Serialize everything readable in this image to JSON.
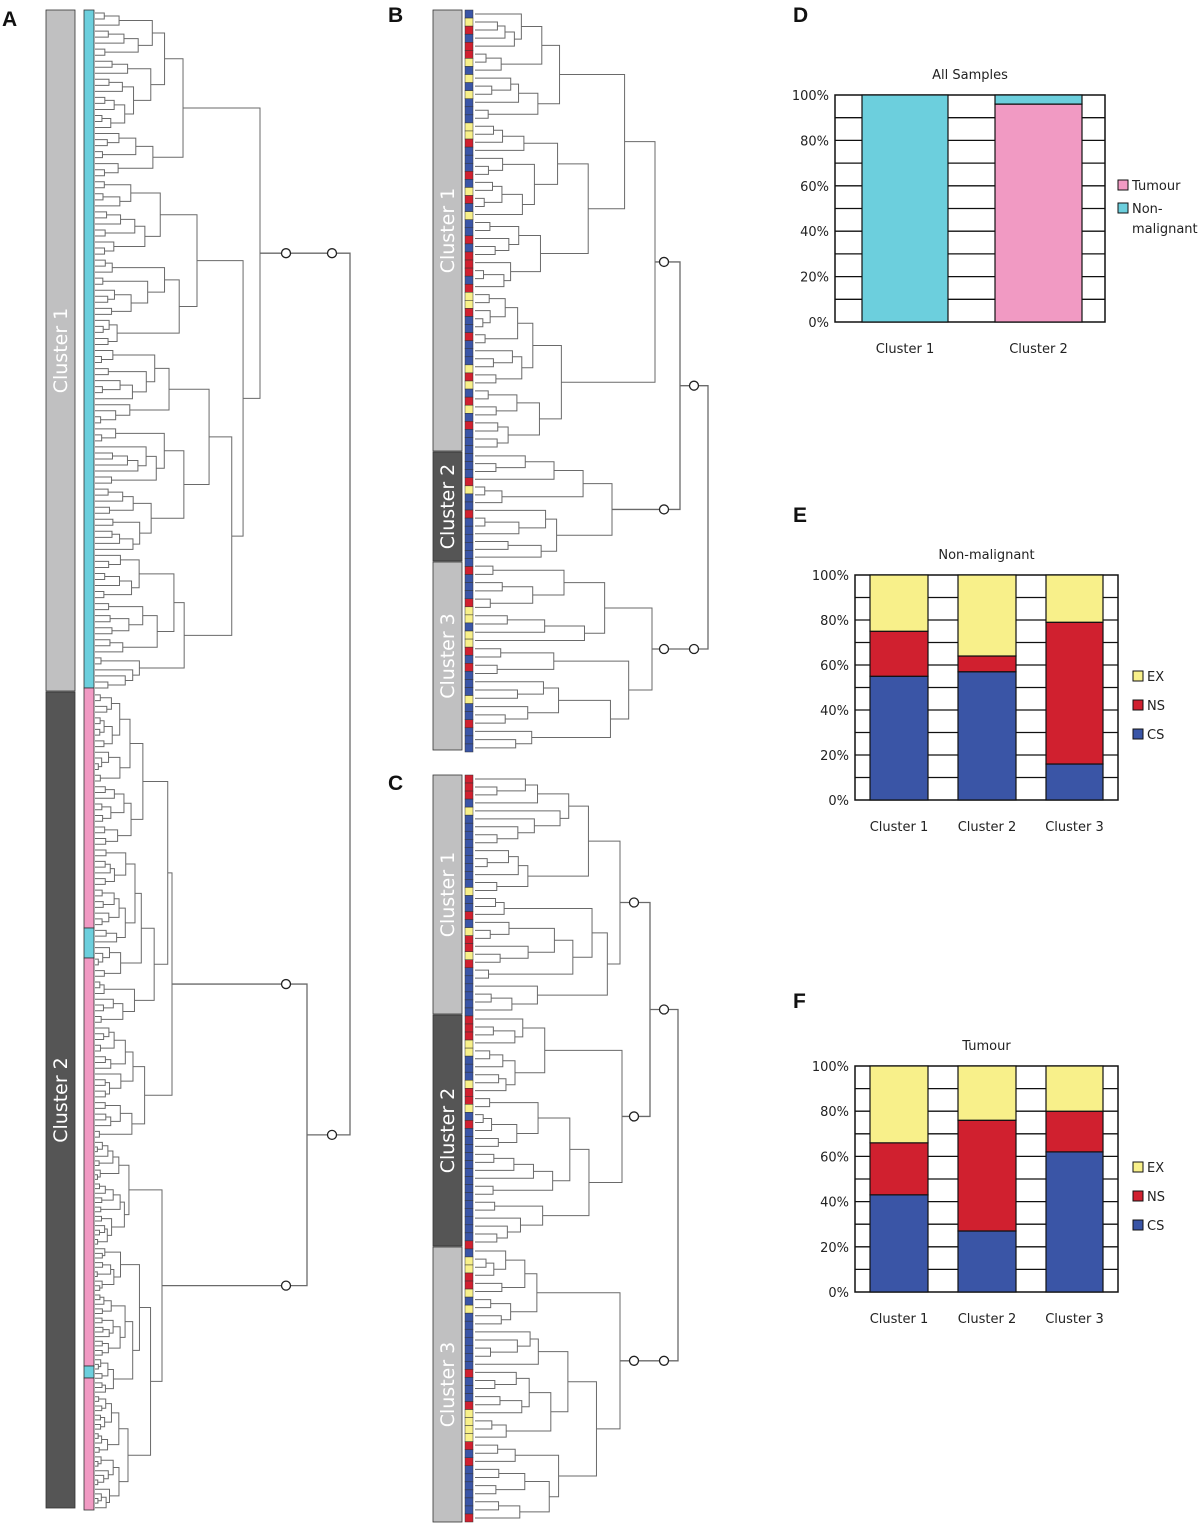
{
  "panels": {
    "a": "A",
    "b": "B",
    "c": "C",
    "d": "D",
    "e": "E",
    "f": "F"
  },
  "colors": {
    "tumour": "#f19ac3",
    "non_malignant": "#6ccfdd",
    "EX": "#f8f08a",
    "NS": "#d0202f",
    "CS": "#3a55a6",
    "cluster_light": "#c0c0c1",
    "cluster_dark": "#555555",
    "tree_line": "#6a6a6a"
  },
  "dendrogram_a": {
    "clusters": [
      "Cluster 1",
      "Cluster 2"
    ],
    "leaf_groups": [
      {
        "type": "non_malignant",
        "count": 113
      },
      {
        "type": "tumour",
        "count": 40
      },
      {
        "type": "non_malignant",
        "count": 5
      },
      {
        "type": "tumour",
        "count": 68
      },
      {
        "type": "non_malignant",
        "count": 2
      },
      {
        "type": "tumour",
        "count": 22
      }
    ]
  },
  "dendrogram_b": {
    "clusters": [
      "Cluster 1",
      "Cluster 2",
      "Cluster 3"
    ]
  },
  "dendrogram_c": {
    "clusters": [
      "Cluster 1",
      "Cluster 2",
      "Cluster 3"
    ]
  },
  "chart_data": [
    {
      "type": "bar",
      "stacked": true,
      "title": "All Samples",
      "categories": [
        "Cluster 1",
        "Cluster 2"
      ],
      "series": [
        {
          "name": "Tumour",
          "values": [
            0,
            96
          ]
        },
        {
          "name": "Non-malignant",
          "values": [
            100,
            4
          ]
        }
      ],
      "yticks": [
        "0%",
        "20%",
        "40%",
        "60%",
        "80%",
        "100%"
      ],
      "ylim": [
        0,
        100
      ],
      "grid": true,
      "legend": "right",
      "legend_entries": [
        "Tumour",
        "Non-",
        "malignant"
      ]
    },
    {
      "type": "bar",
      "stacked": true,
      "title": "Non-malignant",
      "categories": [
        "Cluster 1",
        "Cluster 2",
        "Cluster 3"
      ],
      "series": [
        {
          "name": "CS",
          "values": [
            55,
            57,
            16
          ]
        },
        {
          "name": "NS",
          "values": [
            20,
            7,
            63
          ]
        },
        {
          "name": "EX",
          "values": [
            25,
            36,
            21
          ]
        }
      ],
      "yticks": [
        "0%",
        "20%",
        "40%",
        "60%",
        "80%",
        "100%"
      ],
      "ylim": [
        0,
        100
      ],
      "grid": true,
      "legend": "right",
      "legend_entries": [
        "EX",
        "NS",
        "CS"
      ]
    },
    {
      "type": "bar",
      "stacked": true,
      "title": "Tumour",
      "categories": [
        "Cluster 1",
        "Cluster 2",
        "Cluster 3"
      ],
      "series": [
        {
          "name": "CS",
          "values": [
            43,
            27,
            62
          ]
        },
        {
          "name": "NS",
          "values": [
            23,
            49,
            18
          ]
        },
        {
          "name": "EX",
          "values": [
            34,
            24,
            20
          ]
        }
      ],
      "yticks": [
        "0%",
        "20%",
        "40%",
        "60%",
        "80%",
        "100%"
      ],
      "ylim": [
        0,
        100
      ],
      "grid": true,
      "legend": "right",
      "legend_entries": [
        "EX",
        "NS",
        "CS"
      ]
    }
  ]
}
